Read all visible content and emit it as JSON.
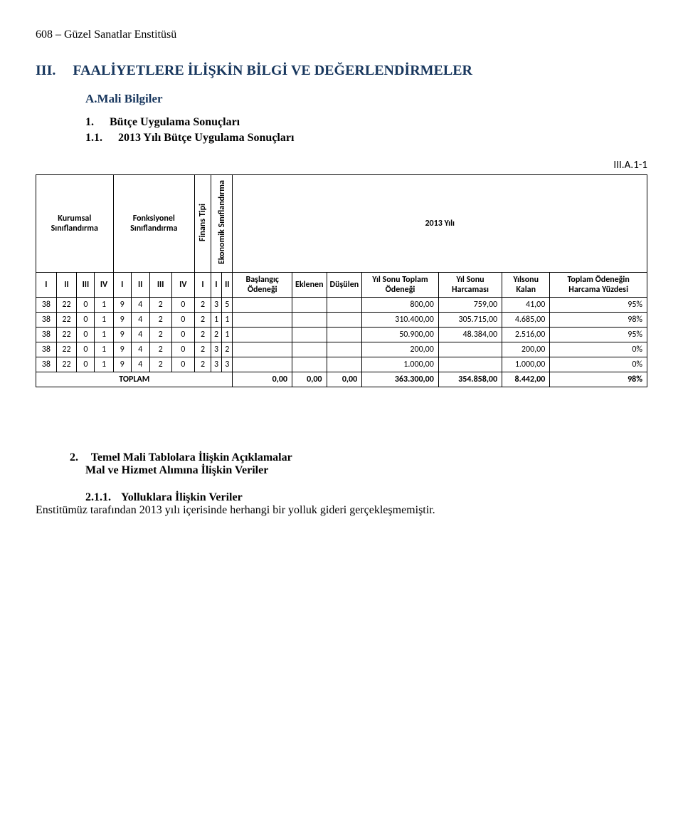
{
  "page_header": "608 – Güzel Sanatlar Enstitüsü",
  "section3": {
    "number": "III.",
    "title": "FAALİYETLERE İLİŞKİN BİLGİ VE DEĞERLENDİRMELER",
    "sub_a": "A.Mali Bilgiler",
    "item1_num": "1.",
    "item1_text": "Bütçe Uygulama Sonuçları",
    "item11_num": "1.1.",
    "item11_text": "2013 Yılı Bütçe Uygulama Sonuçları",
    "table_code": "III.A.1-1"
  },
  "table": {
    "group_headers": {
      "kurumsal": "Kurumsal Sınıflandırma",
      "fonksiyonel": "Fonksiyonel Sınıflandırma",
      "finans": "Finans Tipi",
      "ekonomik": "Ekonomik Sınıflandırma",
      "yil": "2013 Yılı"
    },
    "col_headers": {
      "romans": [
        "I",
        "II",
        "III",
        "IV",
        "I",
        "II",
        "III",
        "IV",
        "I",
        "I",
        "II"
      ],
      "baslangic": "Başlangıç Ödeneği",
      "eklenen": "Eklenen",
      "dusulen": "Düşülen",
      "yilsonu_toplam": "Yıl Sonu Toplam Ödeneği",
      "yilsonu_harcama": "Yıl Sonu Harcaması",
      "yilsonu_kalan": "Yılsonu Kalan",
      "toplam_yuzde": "Toplam Ödeneğin Harcama Yüzdesi"
    },
    "rows": [
      {
        "c": [
          "38",
          "22",
          "0",
          "1",
          "9",
          "4",
          "2",
          "0",
          "2",
          "3",
          "5"
        ],
        "baslangic": "",
        "eklenen": "",
        "dusulen": "",
        "ytoplam": "800,00",
        "yharcama": "759,00",
        "ykalan": "41,00",
        "pct": "95%"
      },
      {
        "c": [
          "38",
          "22",
          "0",
          "1",
          "9",
          "4",
          "2",
          "0",
          "2",
          "1",
          "1"
        ],
        "baslangic": "",
        "eklenen": "",
        "dusulen": "",
        "ytoplam": "310.400,00",
        "yharcama": "305.715,00",
        "ykalan": "4.685,00",
        "pct": "98%"
      },
      {
        "c": [
          "38",
          "22",
          "0",
          "1",
          "9",
          "4",
          "2",
          "0",
          "2",
          "2",
          "1"
        ],
        "baslangic": "",
        "eklenen": "",
        "dusulen": "",
        "ytoplam": "50.900,00",
        "yharcama": "48.384,00",
        "ykalan": "2.516,00",
        "pct": "95%"
      },
      {
        "c": [
          "38",
          "22",
          "0",
          "1",
          "9",
          "4",
          "2",
          "0",
          "2",
          "3",
          "2"
        ],
        "baslangic": "",
        "eklenen": "",
        "dusulen": "",
        "ytoplam": "200,00",
        "yharcama": "",
        "ykalan": "200,00",
        "pct": "0%"
      },
      {
        "c": [
          "38",
          "22",
          "0",
          "1",
          "9",
          "4",
          "2",
          "0",
          "2",
          "3",
          "3"
        ],
        "baslangic": "",
        "eklenen": "",
        "dusulen": "",
        "ytoplam": "1.000,00",
        "yharcama": "",
        "ykalan": "1.000,00",
        "pct": "0%"
      }
    ],
    "total": {
      "label": "TOPLAM",
      "baslangic": "0,00",
      "eklenen": "0,00",
      "dusulen": "0,00",
      "ytoplam": "363.300,00",
      "yharcama": "354.858,00",
      "ykalan": "8.442,00",
      "pct": "98%"
    }
  },
  "section2": {
    "head_num": "2.",
    "head_text": "Temel Mali Tablolara İlişkin Açıklamalar",
    "sub_text": "Mal ve Hizmet Alımına İlişkin Veriler",
    "item_num": "2.1.1.",
    "item_text": "Yolluklara İlişkin Veriler",
    "body": "Enstitümüz tarafından 2013 yılı içerisinde herhangi bir yolluk gideri gerçekleşmemiştir."
  }
}
